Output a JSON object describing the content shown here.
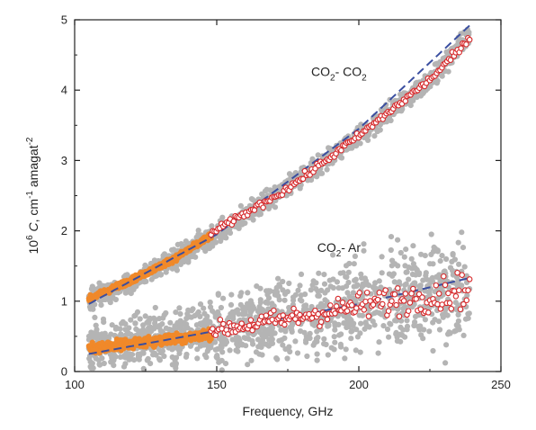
{
  "chart_data": {
    "type": "scatter",
    "title": "",
    "xlabel": "Frequency, GHz",
    "ylabel_parts": {
      "exp_base": "10",
      "exp": "6",
      "symbol": "C",
      "unit1": ", cm",
      "unit1_exp": "-1",
      "unit2": " amagat",
      "unit2_exp": "-2"
    },
    "xlim": [
      100,
      250
    ],
    "ylim": [
      0,
      5
    ],
    "xticks": [
      "100",
      "150",
      "200",
      "250"
    ],
    "yticks": [
      "0",
      "1",
      "2",
      "3",
      "4",
      "5"
    ],
    "grid": false,
    "legend": "none",
    "annotations": [
      {
        "id": "co2-co2",
        "parts": [
          "CO",
          "2",
          "- CO",
          "2"
        ],
        "x": 193,
        "y": 4.2
      },
      {
        "id": "co2-ar",
        "parts": [
          "CO",
          "2",
          "- Ar"
        ],
        "x": 193,
        "y": 1.7
      }
    ],
    "colors": {
      "raw": "#b4b4b4",
      "low_freq": "#f0892a",
      "averaged_edge": "#d7282a",
      "fit": "#3a4ea0"
    },
    "series": [
      {
        "group": "CO2-CO2",
        "role": "raw",
        "x_range": [
          105,
          239
        ],
        "y_at": [
          [
            105,
            1.03
          ],
          [
            120,
            1.25
          ],
          [
            150,
            1.95
          ],
          [
            175,
            2.62
          ],
          [
            200,
            3.35
          ],
          [
            225,
            4.15
          ],
          [
            239,
            4.78
          ]
        ],
        "scatter_spread": 0.07
      },
      {
        "group": "CO2-CO2",
        "role": "low_freq",
        "x_range": [
          105,
          148
        ],
        "y_at": [
          [
            105,
            1.03
          ],
          [
            120,
            1.3
          ],
          [
            135,
            1.6
          ],
          [
            148,
            1.93
          ]
        ]
      },
      {
        "group": "CO2-CO2",
        "role": "averaged",
        "x_range": [
          148,
          239
        ],
        "y_at": [
          [
            148,
            1.96
          ],
          [
            175,
            2.6
          ],
          [
            200,
            3.35
          ],
          [
            225,
            4.15
          ],
          [
            239,
            4.72
          ]
        ]
      },
      {
        "group": "CO2-CO2",
        "role": "fit",
        "x_range": [
          105,
          239
        ],
        "y_at": [
          [
            105,
            0.96
          ],
          [
            150,
            1.95
          ],
          [
            200,
            3.45
          ],
          [
            239,
            4.92
          ]
        ]
      },
      {
        "group": "CO2-Ar",
        "role": "raw",
        "x_range": [
          105,
          239
        ],
        "y_at": [
          [
            105,
            0.35
          ],
          [
            150,
            0.6
          ],
          [
            200,
            0.95
          ],
          [
            239,
            1.2
          ]
        ],
        "scatter_spread": 0.35
      },
      {
        "group": "CO2-Ar",
        "role": "low_freq",
        "x_range": [
          105,
          148
        ],
        "y_at": [
          [
            105,
            0.33
          ],
          [
            125,
            0.42
          ],
          [
            148,
            0.53
          ]
        ]
      },
      {
        "group": "CO2-Ar",
        "role": "averaged",
        "x_range": [
          148,
          239
        ],
        "y_at": [
          [
            148,
            0.58
          ],
          [
            175,
            0.75
          ],
          [
            200,
            0.93
          ],
          [
            225,
            1.08
          ],
          [
            239,
            1.18
          ]
        ]
      },
      {
        "group": "CO2-Ar",
        "role": "fit",
        "x_range": [
          105,
          239
        ],
        "y_at": [
          [
            105,
            0.25
          ],
          [
            150,
            0.58
          ],
          [
            200,
            0.96
          ],
          [
            239,
            1.33
          ]
        ]
      }
    ]
  }
}
